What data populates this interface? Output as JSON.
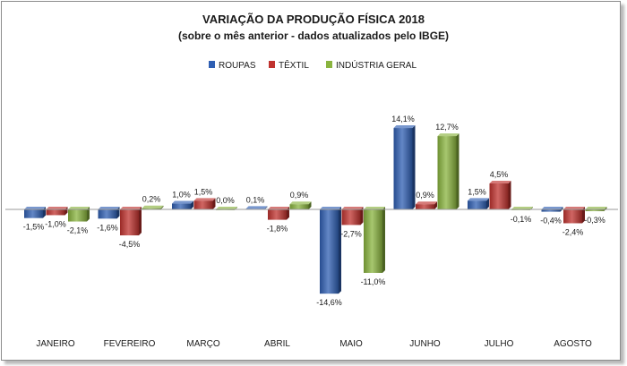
{
  "chart_data": {
    "type": "bar",
    "title": "VARIAÇÃO DA PRODUÇÃO FÍSICA 2018",
    "subtitle": "(sobre o mês anterior - dados atualizados pelo IBGE)",
    "categories": [
      "JANEIRO",
      "FEVEREIRO",
      "MARÇO",
      "ABRIL",
      "MAIO",
      "JUNHO",
      "JULHO",
      "AGOSTO"
    ],
    "series": [
      {
        "name": "ROUPAS",
        "color": "#2f5fb3",
        "values": [
          -1.5,
          -1.6,
          1.0,
          0.1,
          -14.6,
          14.1,
          1.5,
          -0.4
        ]
      },
      {
        "name": "TÊXTIL",
        "color": "#c0332f",
        "values": [
          -1.0,
          -4.5,
          1.5,
          -1.8,
          -2.7,
          0.9,
          4.5,
          -2.4
        ]
      },
      {
        "name": "INDÚSTRIA GERAL",
        "color": "#8ab43f",
        "values": [
          -2.1,
          0.2,
          0.0,
          0.9,
          -11.0,
          12.7,
          -0.1,
          -0.3
        ]
      }
    ],
    "data_labels": [
      [
        "-1,5%",
        "-1,6%",
        "1,0%",
        "0,1%",
        "-14,6%",
        "14,1%",
        "1,5%",
        "-0,4%"
      ],
      [
        "-1,0%",
        "-4,5%",
        "1,5%",
        "-1,8%",
        "-2,7%",
        "0,9%",
        "4,5%",
        "-2,4%"
      ],
      [
        "-2,1%",
        "0,2%",
        "0,0%",
        "0,9%",
        "-11,0%",
        "12,7%",
        "-0,1%",
        "-0,3%"
      ]
    ],
    "legend": "top-center",
    "grid": false,
    "ylim": [
      -16,
      16
    ]
  }
}
